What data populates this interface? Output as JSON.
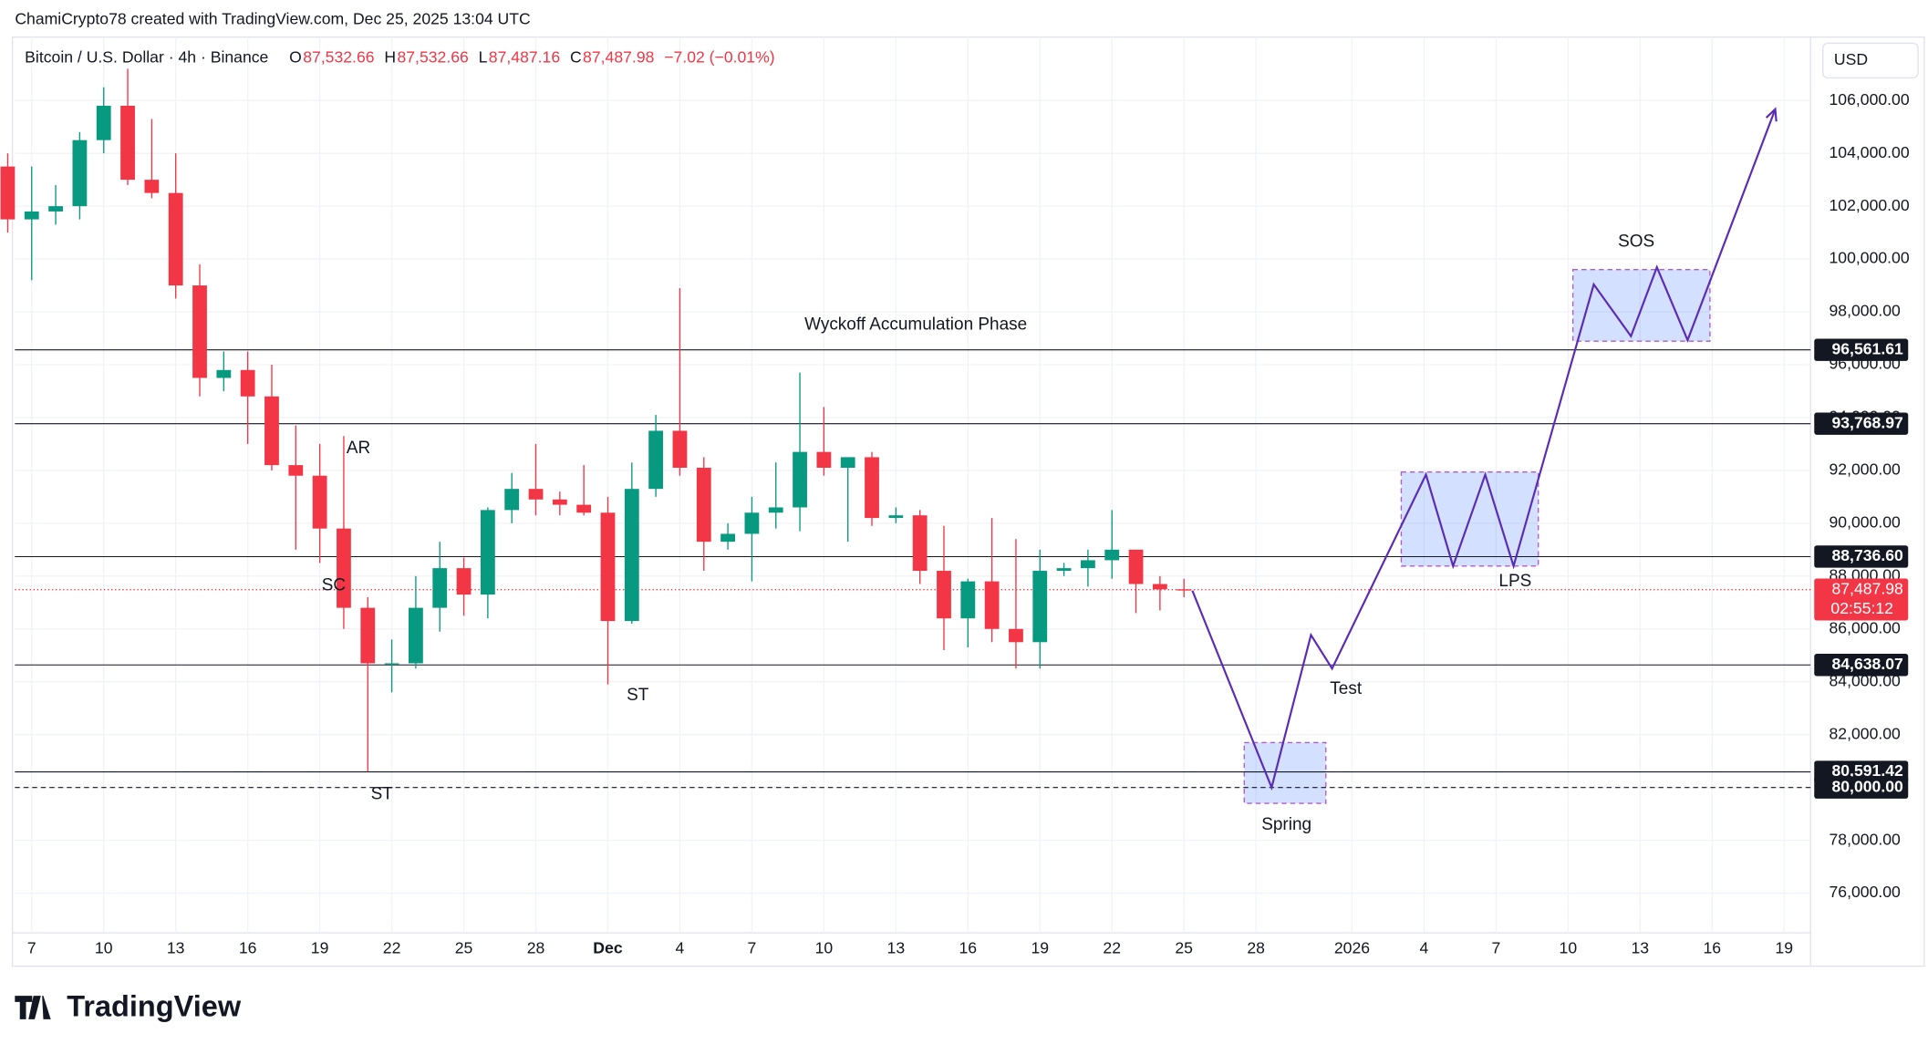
{
  "header": {
    "credit": "ChamiCrypto78 created with TradingView.com, Dec 25, 2025 13:04 UTC",
    "symbol": "Bitcoin / U.S. Dollar · 4h · Binance",
    "ohlc": [
      {
        "key": "O",
        "value": "87,532.66"
      },
      {
        "key": "H",
        "value": "87,532.66"
      },
      {
        "key": "L",
        "value": "87,487.16"
      },
      {
        "key": "C",
        "value": "87,487.98"
      }
    ],
    "change": "−7.02 (−0.01%)",
    "currency": "USD",
    "logo": "TradingView"
  },
  "chart_data": {
    "type": "candlestick",
    "up_color": "#089981",
    "down_color": "#f23645",
    "x": [
      -1,
      0,
      1,
      2,
      3,
      4,
      5,
      6,
      7,
      8,
      9,
      10,
      11,
      12,
      13,
      14,
      15,
      16,
      17,
      18,
      19,
      20,
      21,
      22,
      23,
      24,
      25,
      26,
      27,
      28,
      29,
      30,
      31,
      32,
      33,
      34,
      35,
      36,
      37,
      38,
      39,
      40,
      41,
      42,
      43,
      44,
      45,
      46,
      47,
      48
    ],
    "open": [
      103500,
      101500,
      101800,
      102000,
      104500,
      105800,
      103000,
      102500,
      99000,
      95500,
      95800,
      94800,
      92200,
      91800,
      89800,
      86800,
      84700,
      84700,
      86800,
      88300,
      87300,
      90500,
      91300,
      90900,
      90700,
      90400,
      86300,
      91300,
      93500,
      92100,
      89300,
      89600,
      90400,
      90600,
      92700,
      92100,
      92500,
      90200,
      90300,
      88200,
      86400,
      87800,
      86000,
      85500,
      88200,
      88300,
      88600,
      89000,
      87700,
      87500
    ],
    "high": [
      104000,
      103500,
      102800,
      104800,
      106500,
      107200,
      105300,
      104000,
      99800,
      96500,
      96500,
      96000,
      93700,
      93000,
      93300,
      87200,
      85600,
      88000,
      89300,
      88700,
      90600,
      91900,
      93000,
      91200,
      92200,
      91000,
      92300,
      94100,
      98900,
      92500,
      90000,
      91000,
      92300,
      95700,
      94400,
      92500,
      92700,
      90600,
      90500,
      89900,
      87900,
      90200,
      89400,
      89000,
      88500,
      89000,
      90500,
      89000,
      88000,
      87900
    ],
    "low": [
      101000,
      99200,
      101300,
      101500,
      104000,
      102800,
      102300,
      98500,
      94800,
      95000,
      93000,
      92000,
      89000,
      88500,
      86000,
      80600,
      83600,
      84500,
      85900,
      86500,
      86400,
      90000,
      90300,
      90300,
      90300,
      83900,
      86200,
      91000,
      91800,
      88200,
      89000,
      87800,
      89800,
      89700,
      91800,
      89300,
      89900,
      90000,
      87700,
      85200,
      85300,
      85500,
      84500,
      84500,
      88000,
      87600,
      87900,
      86600,
      86700,
      87200
    ],
    "close": [
      101500,
      101800,
      102000,
      104500,
      105800,
      103000,
      102500,
      99000,
      95500,
      95800,
      94800,
      92200,
      91800,
      89800,
      86800,
      84700,
      84700,
      86800,
      88300,
      87300,
      90500,
      91300,
      90900,
      90700,
      90400,
      86300,
      91300,
      93500,
      92100,
      89300,
      89600,
      90400,
      90600,
      92700,
      92100,
      92500,
      90200,
      90300,
      88200,
      86400,
      87800,
      86000,
      85500,
      88200,
      88300,
      88600,
      89000,
      87700,
      87500,
      87487.98
    ],
    "xlim": [
      -0.7,
      74.1
    ],
    "ylim": [
      74500,
      108400
    ],
    "xticks": [
      {
        "value": 0,
        "label": "7"
      },
      {
        "value": 3,
        "label": "10"
      },
      {
        "value": 6,
        "label": "13"
      },
      {
        "value": 9,
        "label": "16"
      },
      {
        "value": 12,
        "label": "19"
      },
      {
        "value": 15,
        "label": "22"
      },
      {
        "value": 18,
        "label": "25"
      },
      {
        "value": 21,
        "label": "28"
      },
      {
        "value": 24,
        "label": "Dec"
      },
      {
        "value": 27,
        "label": "4"
      },
      {
        "value": 30,
        "label": "7"
      },
      {
        "value": 33,
        "label": "10"
      },
      {
        "value": 36,
        "label": "13"
      },
      {
        "value": 39,
        "label": "16"
      },
      {
        "value": 42,
        "label": "19"
      },
      {
        "value": 45,
        "label": "22"
      },
      {
        "value": 48,
        "label": "25"
      },
      {
        "value": 51,
        "label": "28"
      },
      {
        "value": 55,
        "label": "2026"
      },
      {
        "value": 58,
        "label": "4"
      },
      {
        "value": 61,
        "label": "7"
      },
      {
        "value": 64,
        "label": "10"
      },
      {
        "value": 67,
        "label": "13"
      },
      {
        "value": 70,
        "label": "16"
      },
      {
        "value": 73,
        "label": "19"
      }
    ],
    "yticks": [
      {
        "value": 76000,
        "label": "76,000.00"
      },
      {
        "value": 78000,
        "label": "78,000.00"
      },
      {
        "value": 80000,
        "label": "80,000.00"
      },
      {
        "value": 82000,
        "label": "82,000.00"
      },
      {
        "value": 84000,
        "label": "84,000.00"
      },
      {
        "value": 86000,
        "label": "86,000.00"
      },
      {
        "value": 88000,
        "label": "88,000.00"
      },
      {
        "value": 90000,
        "label": "90,000.00"
      },
      {
        "value": 92000,
        "label": "92,000.00"
      },
      {
        "value": 94000,
        "label": "94,000.00"
      },
      {
        "value": 96000,
        "label": "96,000.00"
      },
      {
        "value": 98000,
        "label": "98,000.00"
      },
      {
        "value": 100000,
        "label": "100,000.00"
      },
      {
        "value": 102000,
        "label": "102,000.00"
      },
      {
        "value": 104000,
        "label": "104,000.00"
      },
      {
        "value": 106000,
        "label": "106,000.00"
      }
    ],
    "grid": true,
    "levels": [
      {
        "value": 96561.61,
        "label": "96,561.61"
      },
      {
        "value": 93768.97,
        "label": "93,768.97"
      },
      {
        "value": 88736.6,
        "label": "88,736.60"
      },
      {
        "value": 84638.07,
        "label": "84,638.07"
      },
      {
        "value": 80591.42,
        "label": "80,591.42"
      },
      {
        "value": 80000,
        "label": "80,000.00",
        "dashed": true
      }
    ],
    "last_price": {
      "value": 87487.98,
      "label": "87,487.98",
      "countdown": "02:55:12",
      "color": "#f23645"
    },
    "projection": {
      "color": "#5b2bb5",
      "x": [
        48.35,
        51.65,
        53.29,
        54.17,
        58.08,
        59.21,
        60.55,
        61.73,
        65.07,
        66.62,
        67.7,
        68.98,
        72.63
      ],
      "y": [
        87450,
        80000,
        85770,
        84500,
        91840,
        88380,
        91840,
        88380,
        99040,
        97080,
        99690,
        96930,
        105670
      ]
    },
    "zones": [
      {
        "x": [
          50.51,
          53.91
        ],
        "y": [
          79400,
          81700
        ]
      },
      {
        "x": [
          57.05,
          62.76
        ],
        "y": [
          88380,
          91940
        ]
      },
      {
        "x": [
          64.2,
          69.91
        ],
        "y": [
          96890,
          99600
        ]
      }
    ],
    "annotations": [
      "Wyckoff Accumulation Phase",
      "AR",
      "SC",
      "ST",
      "ST",
      "Spring",
      "Test",
      "LPS",
      "SOS"
    ]
  }
}
